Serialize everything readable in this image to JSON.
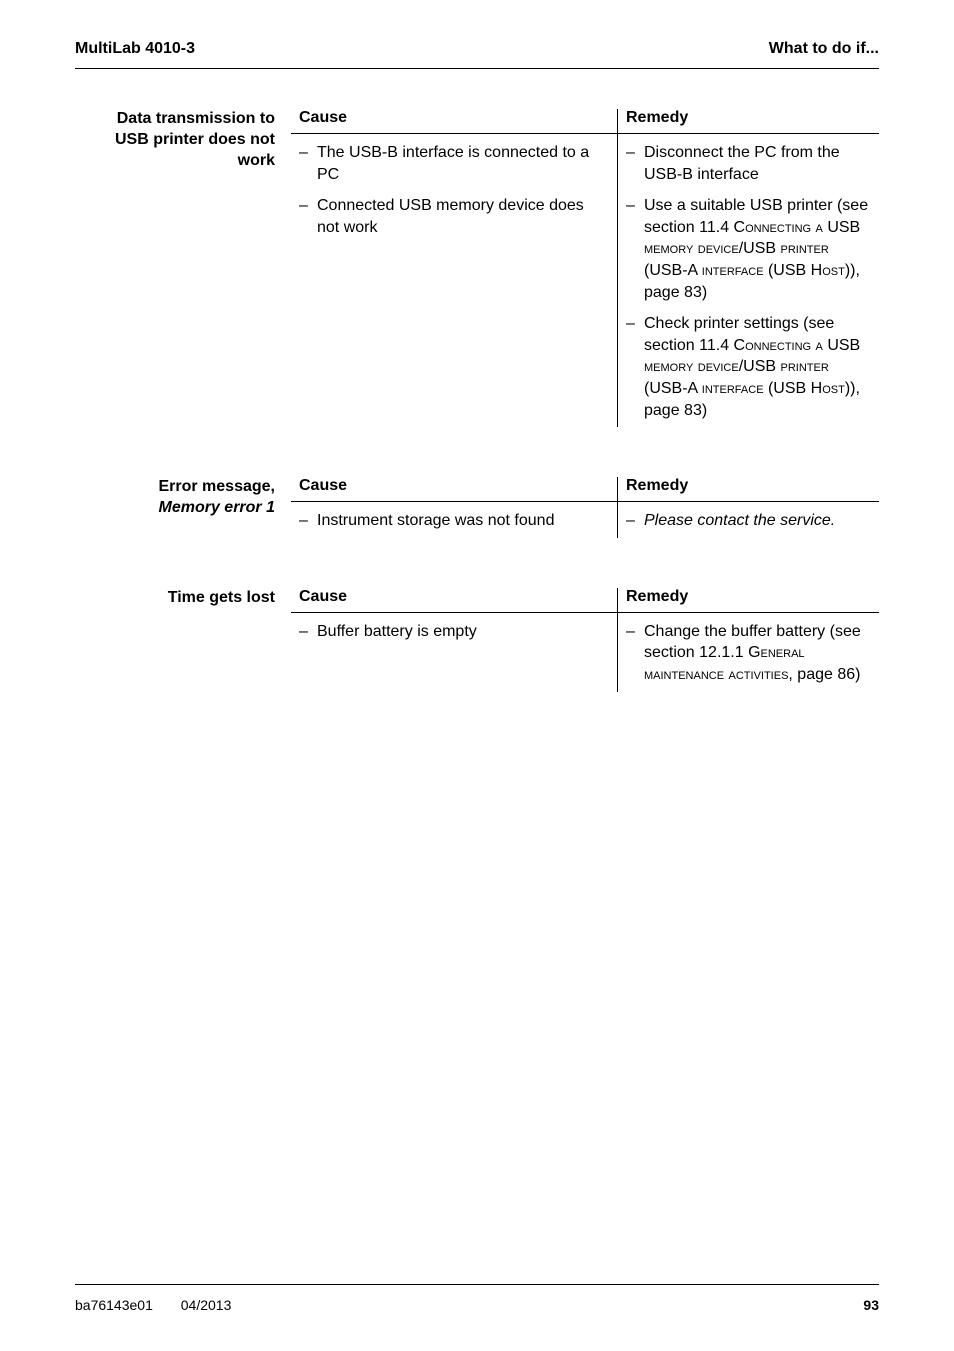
{
  "header": {
    "left": "MultiLab 4010-3",
    "right": "What to do if..."
  },
  "sections": [
    {
      "label_lines": [
        "Data transmission to",
        "USB printer does not",
        "work"
      ],
      "label_italic_indices": [],
      "cause_header": "Cause",
      "remedy_header": "Remedy",
      "rows": [
        {
          "causes": [
            "The USB-B interface is connected to a PC",
            "Connected USB memory device does not work"
          ],
          "remedies": [
            {
              "segments": [
                {
                  "t": "Disconnect the PC from the USB-B interface",
                  "sc": false
                }
              ]
            },
            {
              "segments": [
                {
                  "t": "Use a suitable USB printer (see section 11.4 C",
                  "sc": false
                },
                {
                  "t": "onnecting a ",
                  "sc": true
                },
                {
                  "t": "USB ",
                  "sc": false
                },
                {
                  "t": "memory device",
                  "sc": true
                },
                {
                  "t": "/USB ",
                  "sc": false
                },
                {
                  "t": "printer",
                  "sc": true
                },
                {
                  "t": " (USB-A ",
                  "sc": false
                },
                {
                  "t": "interface",
                  "sc": true
                },
                {
                  "t": " (USB H",
                  "sc": false
                },
                {
                  "t": "ost",
                  "sc": true
                },
                {
                  "t": ")), page 83)",
                  "sc": false
                }
              ]
            },
            {
              "segments": [
                {
                  "t": "Check printer settings (see section 11.4 C",
                  "sc": false
                },
                {
                  "t": "onnecting a ",
                  "sc": true
                },
                {
                  "t": "USB ",
                  "sc": false
                },
                {
                  "t": "memory device",
                  "sc": true
                },
                {
                  "t": "/USB ",
                  "sc": false
                },
                {
                  "t": "printer",
                  "sc": true
                },
                {
                  "t": " (USB-A ",
                  "sc": false
                },
                {
                  "t": "interface",
                  "sc": true
                },
                {
                  "t": " (USB H",
                  "sc": false
                },
                {
                  "t": "ost",
                  "sc": true
                },
                {
                  "t": ")), page 83)",
                  "sc": false
                }
              ]
            }
          ]
        }
      ]
    },
    {
      "label_lines": [
        "Error message,",
        "Memory error 1"
      ],
      "label_italic_indices": [
        1
      ],
      "cause_header": "Cause",
      "remedy_header": "Remedy",
      "rows": [
        {
          "causes": [
            "Instrument storage was not found"
          ],
          "remedies": [
            {
              "segments": [
                {
                  "t": "Please contact the service.",
                  "sc": false,
                  "italic": true
                }
              ]
            }
          ]
        }
      ]
    },
    {
      "label_lines": [
        "Time gets lost"
      ],
      "label_italic_indices": [],
      "cause_header": "Cause",
      "remedy_header": "Remedy",
      "rows": [
        {
          "causes": [
            "Buffer battery is empty"
          ],
          "remedies": [
            {
              "segments": [
                {
                  "t": "Change the buffer battery (see section 12.1.1 G",
                  "sc": false
                },
                {
                  "t": "eneral maintenance activities",
                  "sc": true
                },
                {
                  "t": ", page 86)",
                  "sc": false
                }
              ]
            }
          ]
        }
      ]
    }
  ],
  "footer": {
    "doc_id": "ba76143e01",
    "date": "04/2013",
    "page": "93"
  }
}
